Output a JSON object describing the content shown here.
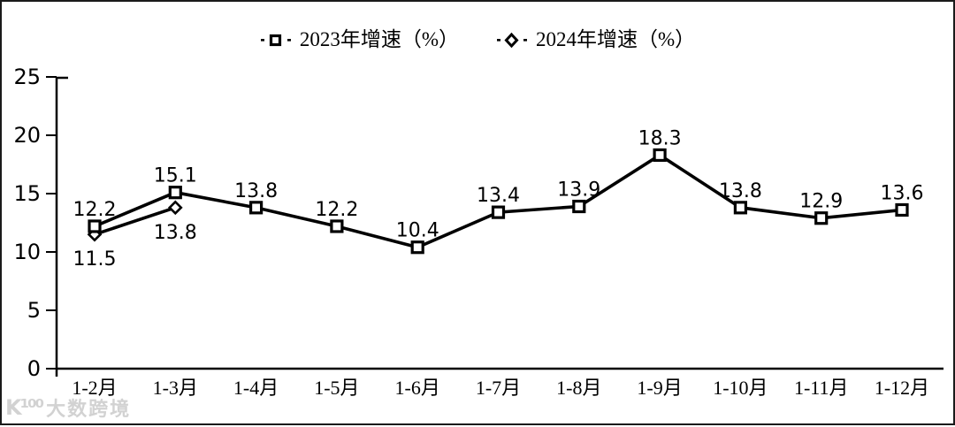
{
  "legend": {
    "items": [
      {
        "label": "2023年增速（%）",
        "marker": "square"
      },
      {
        "label": "2024年增速（%）",
        "marker": "diamond"
      }
    ]
  },
  "watermark": {
    "logo": "K¹⁰⁰",
    "text": "大数跨境"
  },
  "colors": {
    "line": "#000000",
    "text": "#000000",
    "background": "#ffffff",
    "watermark": "#d2d2d2"
  },
  "chart_data": {
    "type": "line",
    "title": "",
    "xlabel": "",
    "ylabel": "",
    "categories": [
      "1-2月",
      "1-3月",
      "1-4月",
      "1-5月",
      "1-6月",
      "1-7月",
      "1-8月",
      "1-9月",
      "1-10月",
      "1-11月",
      "1-12月"
    ],
    "series": [
      {
        "name": "2023年增速（%）",
        "marker": "square",
        "label_position": "above",
        "values": [
          12.2,
          15.1,
          13.8,
          12.2,
          10.4,
          13.4,
          13.9,
          18.3,
          13.8,
          12.9,
          13.6
        ]
      },
      {
        "name": "2024年增速（%）",
        "marker": "diamond",
        "label_position": "below",
        "values": [
          11.5,
          13.8,
          null,
          null,
          null,
          null,
          null,
          null,
          null,
          null,
          null
        ]
      }
    ],
    "ylim": [
      0,
      25
    ],
    "yticks": [
      0,
      5,
      10,
      15,
      20,
      25
    ],
    "grid": false,
    "legend_position": "top-center",
    "line_color": "#000000"
  }
}
